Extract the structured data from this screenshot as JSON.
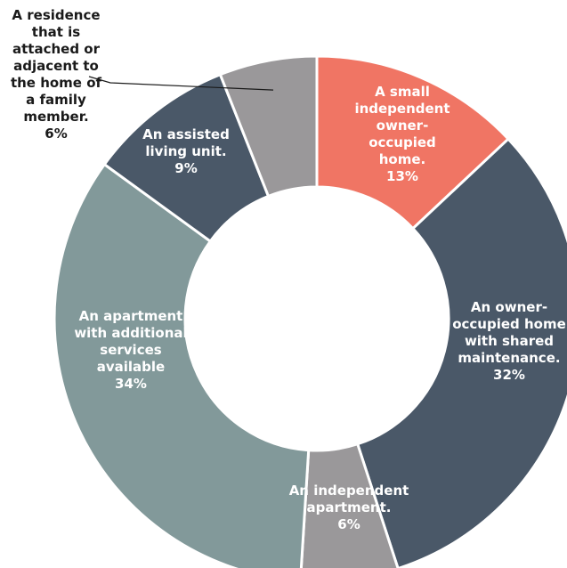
{
  "chart_data": {
    "type": "pie",
    "donut": true,
    "title": "",
    "slices": [
      {
        "label_lines": [
          "A small",
          "independent",
          "owner-",
          "occupied",
          "home."
        ],
        "value": 13,
        "value_text": "13%",
        "color": "#F07564",
        "label_color": "#ffffff"
      },
      {
        "label_lines": [
          "An owner-",
          "occupied home",
          "with shared",
          "maintenance."
        ],
        "value": 32,
        "value_text": "32%",
        "color": "#4A5868",
        "label_color": "#ffffff"
      },
      {
        "label_lines": [
          "An independent",
          "apartment."
        ],
        "value": 6,
        "value_text": "6%",
        "color": "#9A989A",
        "label_color": "#ffffff"
      },
      {
        "label_lines": [
          "An apartment",
          "with additional",
          "services",
          "available"
        ],
        "value": 34,
        "value_text": "34%",
        "color": "#82999A",
        "label_color": "#ffffff"
      },
      {
        "label_lines": [
          "An assisted",
          "living unit."
        ],
        "value": 9,
        "value_text": "9%",
        "color": "#4A5868",
        "label_color": "#ffffff"
      },
      {
        "label_lines": [
          "A residence",
          "that is",
          "attached or",
          "adjacent to",
          "the home of",
          "a family",
          "member."
        ],
        "value": 6,
        "value_text": "6%",
        "color": "#9A989A",
        "label_color": "#1a1a1a",
        "outside_label": true
      }
    ],
    "legend": "none",
    "grid": false
  }
}
